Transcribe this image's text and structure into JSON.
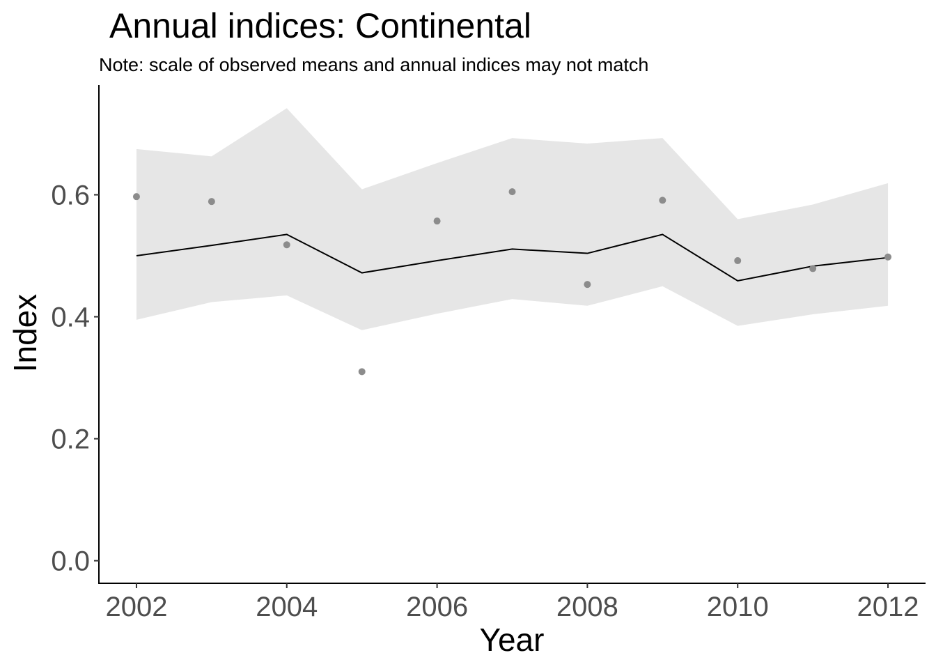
{
  "chart_data": {
    "type": "line",
    "title": "Annual indices: Continental",
    "subtitle": "Note: scale of observed means and annual indices may not match",
    "xlabel": "Year",
    "ylabel": "Index",
    "xlim": [
      2001.5,
      2012.5
    ],
    "ylim": [
      -0.037,
      0.78
    ],
    "x_ticks": [
      2002,
      2004,
      2006,
      2008,
      2010,
      2012
    ],
    "x_tick_labels": [
      "2002",
      "2004",
      "2006",
      "2008",
      "2010",
      "2012"
    ],
    "y_ticks": [
      0.0,
      0.2,
      0.4,
      0.6
    ],
    "y_tick_labels": [
      "0.0",
      "0.2",
      "0.4",
      "0.6"
    ],
    "grid": false,
    "legend": "none",
    "x": [
      2002,
      2003,
      2004,
      2005,
      2006,
      2007,
      2008,
      2009,
      2010,
      2011,
      2012
    ],
    "series": [
      {
        "type": "line",
        "values": [
          0.5,
          0.517,
          0.535,
          0.472,
          0.492,
          0.511,
          0.504,
          0.535,
          0.459,
          0.483,
          0.497
        ],
        "color": "#000000"
      },
      {
        "type": "ribbon",
        "lower": [
          0.395,
          0.424,
          0.435,
          0.378,
          0.405,
          0.429,
          0.418,
          0.45,
          0.385,
          0.404,
          0.418
        ],
        "upper": [
          0.675,
          0.663,
          0.742,
          0.609,
          0.652,
          0.693,
          0.684,
          0.693,
          0.56,
          0.584,
          0.619
        ],
        "color": "#e6e6e6"
      },
      {
        "type": "scatter",
        "values": [
          0.597,
          0.589,
          0.518,
          0.31,
          0.557,
          0.605,
          0.453,
          0.591,
          0.492,
          0.479,
          0.498
        ],
        "color": "#8c8c8c"
      }
    ]
  }
}
